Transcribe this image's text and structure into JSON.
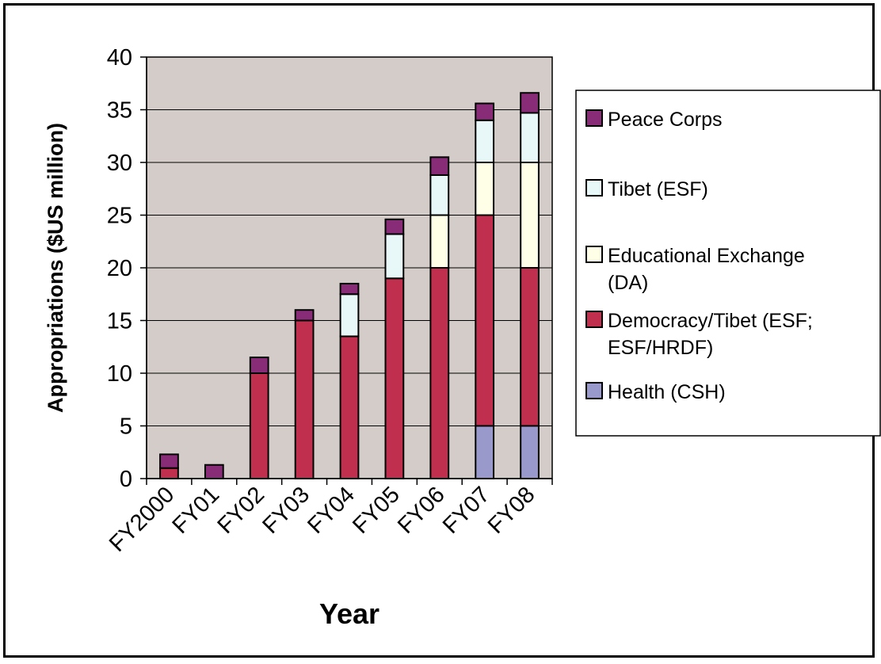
{
  "chart_data": {
    "type": "bar",
    "stacked": true,
    "title": "",
    "xlabel": "Year",
    "ylabel": "Appropriations ($US million)",
    "ylim": [
      0,
      40
    ],
    "yticks": [
      0,
      5,
      10,
      15,
      20,
      25,
      30,
      35,
      40
    ],
    "grid": true,
    "legend_position": "right",
    "categories": [
      "FY2000",
      "FY01",
      "FY02",
      "FY03",
      "FY04",
      "FY05",
      "FY06",
      "FY07",
      "FY08"
    ],
    "series": [
      {
        "name": "Health (CSH)",
        "color": "#9999CC",
        "values": [
          0,
          0,
          0,
          0,
          0,
          0,
          0,
          5,
          5
        ]
      },
      {
        "name": "Democracy/Tibet (ESF; ESF/HRDF)",
        "color": "#C0304E",
        "values": [
          1,
          0,
          10,
          15,
          13.5,
          19,
          20,
          20,
          15
        ]
      },
      {
        "name": "Educational Exchange (DA)",
        "color": "#FFFFE8",
        "values": [
          0,
          0,
          0,
          0,
          0,
          0,
          5,
          5,
          10
        ]
      },
      {
        "name": "Tibet (ESF)",
        "color": "#E8F8F8",
        "values": [
          0,
          0,
          0,
          0,
          4,
          4.2,
          3.8,
          4,
          4.7
        ]
      },
      {
        "name": "Peace Corps",
        "color": "#882C78",
        "values": [
          1.3,
          1.3,
          1.5,
          1,
          1,
          1.4,
          1.7,
          1.6,
          1.9
        ]
      }
    ],
    "legend_order": [
      "Peace Corps",
      "Tibet (ESF)",
      "Educational Exchange (DA)",
      "Democracy/Tibet (ESF; ESF/HRDF)",
      "Health (CSH)"
    ],
    "legend_lines": {
      "Peace Corps": [
        "Peace Corps"
      ],
      "Tibet (ESF)": [
        "Tibet (ESF)"
      ],
      "Educational Exchange (DA)": [
        "Educational Exchange",
        "(DA)"
      ],
      "Democracy/Tibet (ESF; ESF/HRDF)": [
        "Democracy/Tibet (ESF;",
        "ESF/HRDF)"
      ],
      "Health (CSH)": [
        "Health (CSH)"
      ]
    },
    "plot_background": "#D4CCC8"
  }
}
